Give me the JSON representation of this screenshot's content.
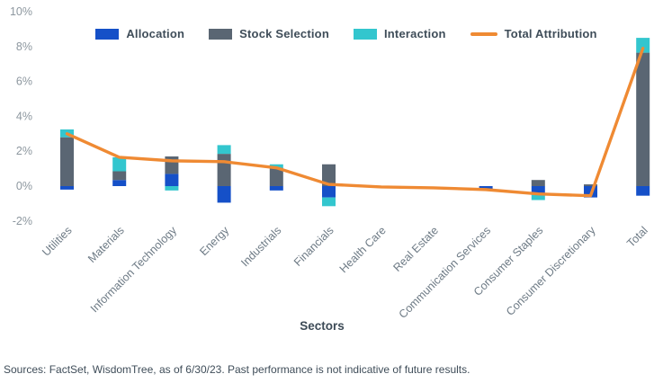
{
  "chart_data": {
    "type": "bar",
    "subtype": "stacked-bar-with-line",
    "title": "",
    "xlabel": "Sectors",
    "ylabel": "",
    "ylim": [
      -2,
      10
    ],
    "yticks": [
      10,
      8,
      6,
      4,
      2,
      0,
      -2
    ],
    "ytick_suffix": "%",
    "grid": false,
    "legend_position": "top-center",
    "categories": [
      "Utilities",
      "Materials",
      "Information Technology",
      "Energy",
      "Industrials",
      "Financials",
      "Health Care",
      "Real Estate",
      "Communication Services",
      "Consumer Staples",
      "Consumer Discretionary",
      "Total"
    ],
    "series": [
      {
        "name": "Allocation",
        "color": "#1550c8",
        "values": [
          -0.2,
          0.35,
          0.7,
          -0.95,
          -0.25,
          -0.65,
          0,
          0,
          -0.25,
          -0.5,
          -0.65,
          -0.55
        ]
      },
      {
        "name": "Stock Selection",
        "color": "#5a6673",
        "values": [
          2.8,
          0.5,
          1.0,
          1.85,
          1.05,
          1.25,
          0,
          0,
          0,
          0.35,
          0.1,
          7.65
        ]
      },
      {
        "name": "Interaction",
        "color": "#33c6ce",
        "values": [
          0.45,
          0.8,
          -0.25,
          0.5,
          0.2,
          -0.5,
          0,
          0,
          0,
          -0.3,
          0,
          0.85
        ]
      }
    ],
    "total_line": {
      "name": "Total Attribution",
      "color": "#ef8a33",
      "values": [
        3.0,
        1.65,
        1.45,
        1.4,
        1.05,
        0.1,
        -0.05,
        -0.1,
        -0.2,
        -0.45,
        -0.55,
        7.9
      ]
    }
  },
  "colors": {
    "background": "#ffffff",
    "ytick_text": "#8d979f",
    "xtick_text": "#6d7a85",
    "axis_title_text": "#3d4b57",
    "legend_text": "#3f4d59",
    "footer_text": "#3f4d59"
  },
  "footer": {
    "source_note": "Sources: FactSet, WisdomTree, as of 6/30/23. Past performance is not indicative of future results."
  }
}
